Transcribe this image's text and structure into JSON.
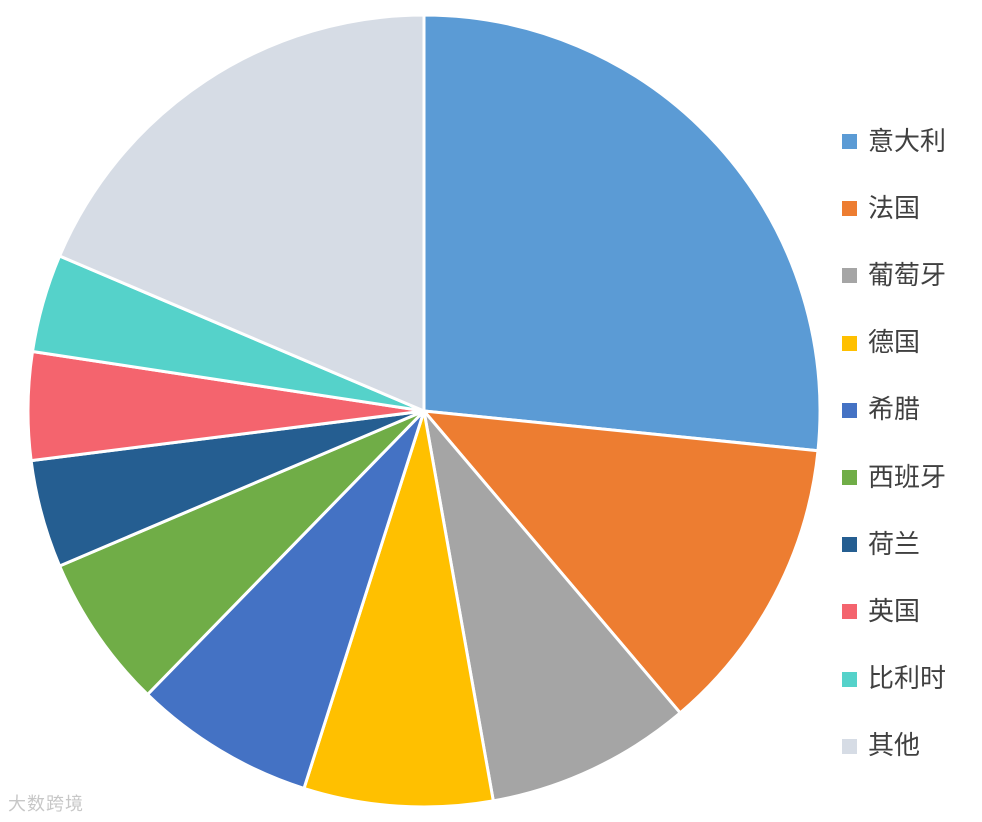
{
  "chart_data": {
    "type": "pie",
    "categories": [
      "意大利",
      "法国",
      "葡萄牙",
      "德国",
      "希腊",
      "西班牙",
      "荷兰",
      "英国",
      "比利时",
      "其他"
    ],
    "values": [
      26.6,
      12.2,
      8.4,
      7.7,
      7.4,
      6.3,
      4.4,
      4.4,
      4.0,
      18.6
    ],
    "unit": "%",
    "colors": [
      "#5B9BD5",
      "#ED7D31",
      "#A5A5A5",
      "#FFC000",
      "#4472C4",
      "#70AD47",
      "#255E91",
      "#F4646E",
      "#55D2CA",
      "#D6DCE5"
    ],
    "legend_position": "right",
    "start_angle": "top",
    "direction": "clockwise"
  },
  "watermark": "大数跨境"
}
